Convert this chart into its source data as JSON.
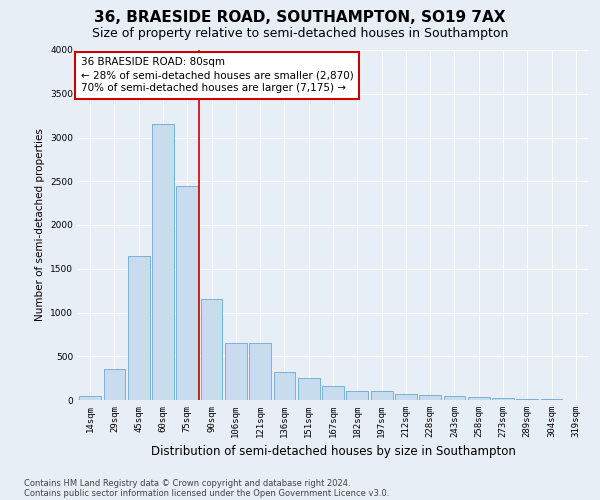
{
  "title": "36, BRAESIDE ROAD, SOUTHAMPTON, SO19 7AX",
  "subtitle": "Size of property relative to semi-detached houses in Southampton",
  "xlabel": "Distribution of semi-detached houses by size in Southampton",
  "ylabel": "Number of semi-detached properties",
  "bar_color": "#c9dced",
  "bar_edge_color": "#6aaad4",
  "categories": [
    "14sqm",
    "29sqm",
    "45sqm",
    "60sqm",
    "75sqm",
    "90sqm",
    "106sqm",
    "121sqm",
    "136sqm",
    "151sqm",
    "167sqm",
    "182sqm",
    "197sqm",
    "212sqm",
    "228sqm",
    "243sqm",
    "258sqm",
    "273sqm",
    "289sqm",
    "304sqm",
    "319sqm"
  ],
  "values": [
    50,
    350,
    1650,
    3150,
    2450,
    1150,
    650,
    650,
    320,
    250,
    165,
    100,
    100,
    70,
    60,
    50,
    40,
    20,
    15,
    10,
    5
  ],
  "ylim": [
    0,
    4000
  ],
  "yticks": [
    0,
    500,
    1000,
    1500,
    2000,
    2500,
    3000,
    3500,
    4000
  ],
  "vline_bin_index": 4,
  "vline_color": "#cc0000",
  "annotation_text": "36 BRAESIDE ROAD: 80sqm\n← 28% of semi-detached houses are smaller (2,870)\n70% of semi-detached houses are larger (7,175) →",
  "annotation_box_color": "white",
  "annotation_box_edge": "#cc0000",
  "footer1": "Contains HM Land Registry data © Crown copyright and database right 2024.",
  "footer2": "Contains public sector information licensed under the Open Government Licence v3.0.",
  "background_color": "#e8eef5",
  "grid_color": "#ffffff",
  "title_fontsize": 11,
  "subtitle_fontsize": 9,
  "xlabel_fontsize": 8.5,
  "ylabel_fontsize": 7.5,
  "tick_fontsize": 6.5,
  "annotation_fontsize": 7.5,
  "footer_fontsize": 6
}
